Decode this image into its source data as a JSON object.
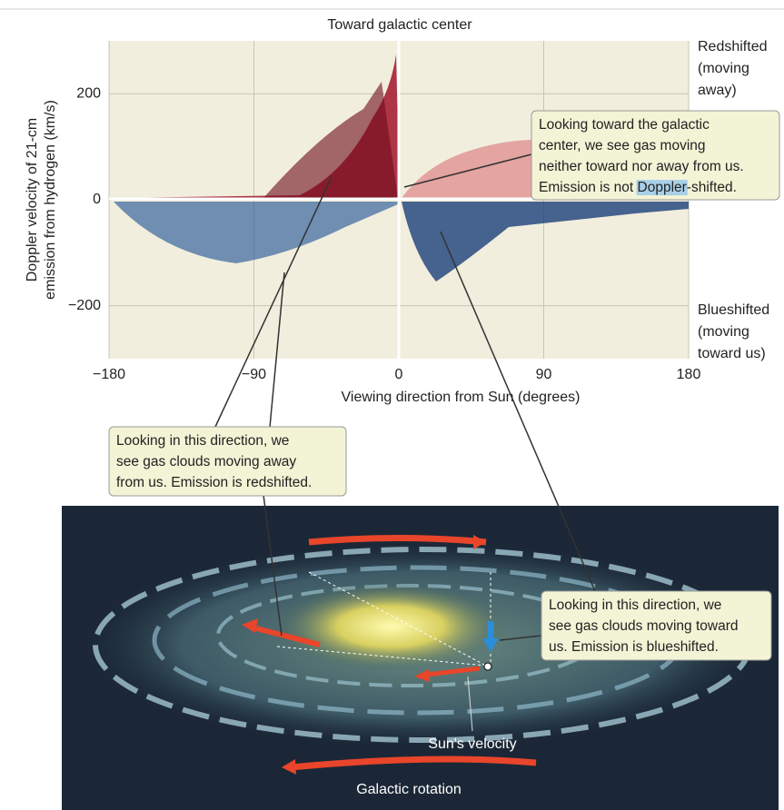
{
  "plot": {
    "title": "Toward galactic center",
    "y_label": [
      "Doppler velocity of 21-cm",
      "emission from hydrogen (km/s)"
    ],
    "x_label": "Viewing direction from Sun (degrees)",
    "xlim": [
      -180,
      180
    ],
    "ylim": [
      -300,
      300
    ],
    "xticks": [
      {
        "value": -180,
        "label": "−180"
      },
      {
        "value": -90,
        "label": "−90"
      },
      0,
      90,
      180
    ],
    "yticks": [
      {
        "value": -200,
        "label": "−200"
      },
      0,
      200
    ],
    "redshift_label": [
      "Redshifted",
      "(moving",
      "away)"
    ],
    "blueshift_label": [
      "Blueshifted",
      "(moving",
      "toward us)"
    ]
  },
  "callouts": [
    {
      "lines": [
        "Looking toward the galactic",
        "center, we see gas moving",
        "neither toward nor away from us."
      ],
      "last_line": [
        "Emission is not ",
        "Doppler",
        "-shifted."
      ]
    },
    {
      "lines": [
        "Looking in this direction, we",
        "see gas clouds moving away",
        "from us. Emission is redshifted."
      ]
    },
    {
      "lines": [
        "Looking in this direction, we",
        "see gas clouds moving toward",
        "us. Emission is blueshifted."
      ]
    }
  ],
  "galaxy": {
    "sun_label": "Sun's velocity",
    "rotation_label": "Galactic rotation"
  }
}
